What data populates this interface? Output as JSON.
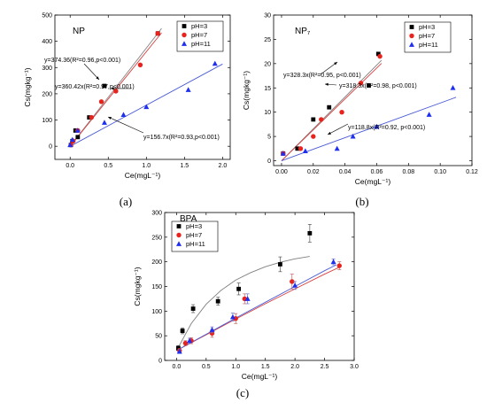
{
  "charts": [
    {
      "panel_letter": "(a)",
      "title": "NP",
      "xlabel": "Ce(mgL⁻¹)",
      "ylabel": "Cs(mgkg⁻¹)",
      "legend": [
        "pH=3",
        "pH=7",
        "pH=11"
      ],
      "annotations": [
        "y=374.36(R²=0.96,p<0.001)",
        "y=360.42x(R²=0.97,p<0.001)",
        "y=156.7x(R²=0.93,p<0.001)"
      ]
    },
    {
      "panel_letter": "(b)",
      "title": "NP₇",
      "xlabel": "Ce(mgL⁻¹)",
      "ylabel": "Cs(mgkg⁻¹)",
      "legend": [
        "pH=3",
        "pH=7",
        "pH=11"
      ],
      "annotations": [
        "y=328.3x(R²=0.95, p<0.001)",
        "y=318.3x(R²=0.98, p<0.001)",
        "y=118.8x(R²=0.92, p<0.001)"
      ]
    },
    {
      "panel_letter": "(c)",
      "title": "BPA",
      "xlabel": "Ce(mgL⁻¹)",
      "ylabel": "Cs(mgkg⁻¹)",
      "legend": [
        "pH=3",
        "pH=7",
        "pH=11"
      ],
      "annotations": []
    }
  ],
  "colors": {
    "pH3": "#000000",
    "pH7": "#e8231d",
    "pH11": "#1f2ff0",
    "fit3": "#7f7f7f",
    "fit7": "#d64040",
    "fit11": "#4b5bd6",
    "fitA": "#8a8a8a"
  },
  "chart_data": [
    {
      "type": "scatter",
      "title": "NP",
      "xlabel": "Ce(mgL⁻¹)",
      "ylabel": "Cs(mgkg⁻¹)",
      "xlim": [
        -0.2,
        2.1
      ],
      "ylim": [
        -50,
        500
      ],
      "xticks": [
        0.0,
        0.5,
        1.0,
        1.5,
        2.0
      ],
      "yticks": [
        0,
        100,
        200,
        300,
        400,
        500
      ],
      "xticklabels": [
        "0.0",
        "0.5",
        "1.0",
        "1.5",
        "2.0"
      ],
      "yticklabels": [
        "0",
        "100",
        "200",
        "300",
        "400",
        "500"
      ],
      "series": [
        {
          "name": "pH=3",
          "marker": "square",
          "color": "#000000",
          "x": [
            0.01,
            0.03,
            0.07,
            0.1,
            0.25,
            0.45,
            1.15
          ],
          "y": [
            5,
            20,
            60,
            35,
            110,
            230,
            430
          ]
        },
        {
          "name": "pH=7",
          "marker": "circle",
          "color": "#e8231d",
          "x": [
            0.01,
            0.04,
            0.1,
            0.28,
            0.41,
            0.6,
            0.92,
            1.15
          ],
          "y": [
            5,
            20,
            60,
            110,
            170,
            210,
            310,
            430
          ]
        },
        {
          "name": "pH=11",
          "marker": "triangle",
          "color": "#1f2ff0",
          "x": [
            0.0,
            0.03,
            0.1,
            0.45,
            0.7,
            1.0,
            1.55,
            1.9
          ],
          "y": [
            5,
            25,
            60,
            90,
            120,
            150,
            215,
            315
          ]
        }
      ],
      "fits": [
        {
          "series": "pH=3",
          "slope": 374.36,
          "x_range": [
            0,
            1.2
          ]
        },
        {
          "series": "pH=7",
          "slope": 360.42,
          "x_range": [
            0,
            1.2
          ]
        },
        {
          "series": "pH=11",
          "slope": 156.7,
          "x_range": [
            0,
            2.0
          ]
        }
      ],
      "legend_position": "top-right",
      "grid": false
    },
    {
      "type": "scatter",
      "title": "NP₇",
      "xlabel": "Ce(mgL⁻¹)",
      "ylabel": "Cs(mgkg⁻¹)",
      "xlim": [
        -0.005,
        0.12
      ],
      "ylim": [
        -1,
        30
      ],
      "xticks": [
        0.0,
        0.02,
        0.04,
        0.06,
        0.08,
        0.1,
        0.12
      ],
      "yticks": [
        0,
        5,
        10,
        15,
        20,
        25,
        30
      ],
      "xticklabels": [
        "0.00",
        "0.02",
        "0.04",
        "0.06",
        "0.08",
        "0.10",
        "0.12"
      ],
      "yticklabels": [
        "0",
        "5",
        "10",
        "15",
        "20",
        "25",
        "30"
      ],
      "series": [
        {
          "name": "pH=3",
          "marker": "square",
          "color": "#000000",
          "x": [
            0.001,
            0.01,
            0.02,
            0.03,
            0.055,
            0.061
          ],
          "y": [
            1.5,
            2.5,
            8.5,
            11,
            15.5,
            22
          ]
        },
        {
          "name": "pH=7",
          "marker": "circle",
          "color": "#e8231d",
          "x": [
            0.001,
            0.012,
            0.02,
            0.025,
            0.038,
            0.05,
            0.062
          ],
          "y": [
            1.5,
            2.5,
            5,
            8.5,
            10,
            16,
            21.5
          ]
        },
        {
          "name": "pH=11",
          "marker": "triangle",
          "color": "#1f2ff0",
          "x": [
            0.001,
            0.015,
            0.035,
            0.045,
            0.06,
            0.093,
            0.108
          ],
          "y": [
            1.5,
            2,
            2.5,
            5,
            7,
            9.5,
            15
          ]
        }
      ],
      "fits": [
        {
          "series": "pH=3",
          "slope": 328.3,
          "x_range": [
            0,
            0.063
          ]
        },
        {
          "series": "pH=7",
          "slope": 318.3,
          "x_range": [
            0,
            0.063
          ]
        },
        {
          "series": "pH=11",
          "slope": 118.8,
          "x_range": [
            0,
            0.11
          ]
        }
      ],
      "legend_position": "top-right",
      "grid": false
    },
    {
      "type": "scatter",
      "title": "BPA",
      "xlabel": "Ce(mgL⁻¹)",
      "ylabel": "Cs(mgkg⁻¹)",
      "xlim": [
        -0.2,
        3.0
      ],
      "ylim": [
        0,
        300
      ],
      "xticks": [
        0.0,
        0.5,
        1.0,
        1.5,
        2.0,
        2.5,
        3.0
      ],
      "yticks": [
        0,
        50,
        100,
        150,
        200,
        250,
        300
      ],
      "xticklabels": [
        "0.0",
        "0.5",
        "1.0",
        "1.5",
        "2.0",
        "2.5",
        "3.0"
      ],
      "yticklabels": [
        "0",
        "50",
        "100",
        "150",
        "200",
        "250",
        "300"
      ],
      "series": [
        {
          "name": "pH=3",
          "marker": "square",
          "color": "#000000",
          "x": [
            0.03,
            0.1,
            0.28,
            0.7,
            1.05,
            1.75,
            2.25
          ],
          "y": [
            25,
            60,
            105,
            120,
            145,
            195,
            258
          ],
          "yerr": [
            5,
            6,
            8,
            8,
            12,
            15,
            18
          ]
        },
        {
          "name": "pH=7",
          "marker": "circle",
          "color": "#e8231d",
          "x": [
            0.05,
            0.15,
            0.25,
            0.6,
            1.0,
            1.15,
            1.95,
            2.75
          ],
          "y": [
            20,
            35,
            40,
            55,
            85,
            125,
            160,
            192
          ],
          "yerr": [
            4,
            5,
            6,
            8,
            10,
            10,
            15,
            8
          ]
        },
        {
          "name": "pH=11",
          "marker": "triangle",
          "color": "#1f2ff0",
          "x": [
            0.05,
            0.22,
            0.6,
            0.95,
            1.2,
            2.0,
            2.65
          ],
          "y": [
            18,
            40,
            62,
            88,
            125,
            152,
            200
          ],
          "yerr": [
            4,
            5,
            6,
            8,
            10,
            8,
            6
          ]
        }
      ],
      "fits": [
        {
          "series": "pH=3",
          "kind": "curve",
          "x": [
            0.0,
            0.25,
            0.5,
            0.75,
            1.0,
            1.25,
            1.5,
            1.75,
            2.0,
            2.25
          ],
          "y": [
            20,
            75,
            114,
            142,
            163,
            178,
            190,
            199,
            206,
            211
          ]
        },
        {
          "series": "pH=7",
          "kind": "curve",
          "x": [
            0.0,
            0.5,
            1.0,
            1.5,
            2.0,
            2.5,
            2.75
          ],
          "y": [
            20,
            52,
            84,
            115,
            145,
            175,
            189
          ]
        },
        {
          "series": "pH=11",
          "kind": "curve",
          "x": [
            0.0,
            0.5,
            1.0,
            1.5,
            2.0,
            2.5,
            2.7
          ],
          "y": [
            20,
            53,
            86,
            118,
            150,
            182,
            194
          ]
        }
      ],
      "legend_position": "top-left",
      "grid": false
    }
  ]
}
